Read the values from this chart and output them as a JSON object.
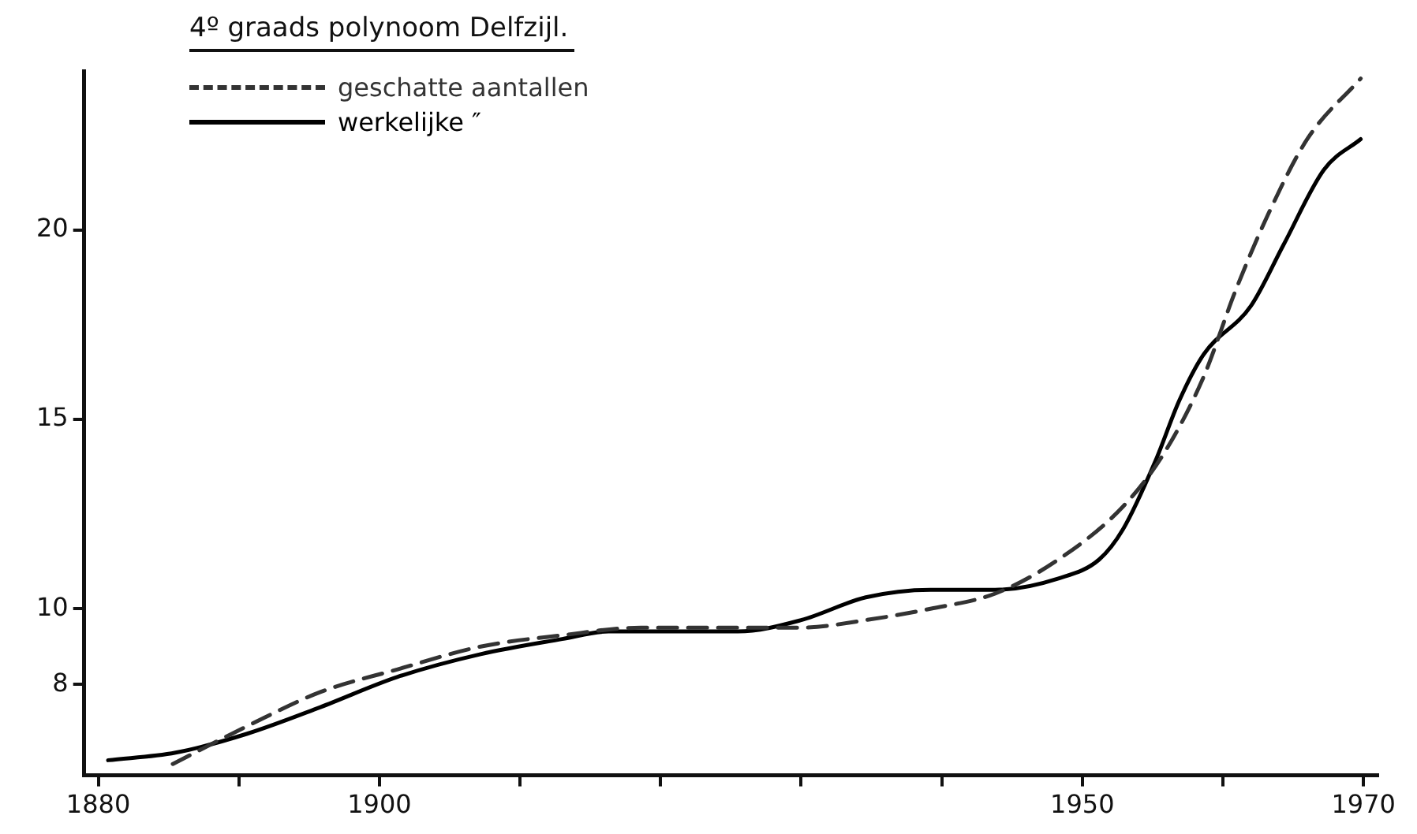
{
  "chart_data": {
    "type": "line",
    "title": "4º graads polynoom Delfzijl.",
    "legend": "top left",
    "grid": false,
    "marker": "none",
    "xlim": [
      1879,
      1971
    ],
    "ylim": [
      5.6,
      24.2
    ],
    "xticks": [
      1880,
      {
        "value": 1890,
        "label": null
      },
      1900,
      {
        "value": 1910,
        "label": null
      },
      {
        "value": 1920,
        "label": null
      },
      {
        "value": 1930,
        "label": null
      },
      {
        "value": 1940,
        "label": null
      },
      1950,
      {
        "value": 1960,
        "label": null
      },
      1970
    ],
    "yticks": [
      8,
      10,
      15,
      20
    ],
    "series": [
      {
        "name": "geschatte aantallen",
        "color": "#333333",
        "line_style": "dashed",
        "x": [
          1885.3,
          1890.6,
          1895.8,
          1901.3,
          1907.2,
          1913,
          1918.6,
          1924.3,
          1930,
          1934.6,
          1939.2,
          1943.8,
          1948.3,
          1952.9,
          1955.8,
          1958.6,
          1960.9,
          1963.2,
          1966,
          1969.8
        ],
        "values": [
          5.9,
          6.9,
          7.8,
          8.4,
          9.0,
          9.3,
          9.5,
          9.5,
          9.5,
          9.7,
          10.0,
          10.4,
          11.3,
          12.7,
          14.1,
          16.1,
          18.4,
          20.4,
          22.4,
          24.0
        ]
      },
      {
        "name": "werkelijke ″",
        "color": "#000000",
        "line_style": "solid",
        "x": [
          1880.7,
          1885.5,
          1890.6,
          1895.8,
          1901.3,
          1907.2,
          1913,
          1916.3,
          1920.9,
          1925.5,
          1930,
          1934.6,
          1939.2,
          1943.8,
          1948.3,
          1951.2,
          1952.9,
          1955.2,
          1956.9,
          1958.6,
          1962,
          1964.3,
          1967.2,
          1969.8
        ],
        "values": [
          6.0,
          6.2,
          6.7,
          7.4,
          8.2,
          8.8,
          9.2,
          9.4,
          9.4,
          9.4,
          9.7,
          10.3,
          10.5,
          10.5,
          10.8,
          11.3,
          12.1,
          13.9,
          15.5,
          16.7,
          18.0,
          19.6,
          21.6,
          22.4
        ]
      }
    ]
  }
}
